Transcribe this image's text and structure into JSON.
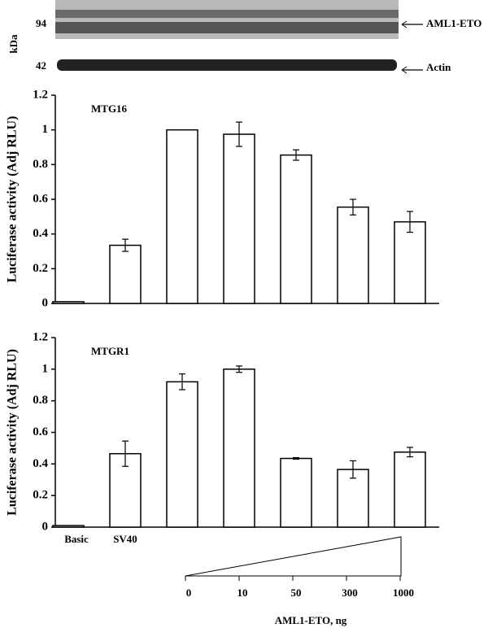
{
  "blot": {
    "markers": [
      94,
      42
    ],
    "unit": "kDa",
    "labels": [
      "AML1-ETO",
      "Actin"
    ]
  },
  "chart_data": [
    {
      "type": "bar",
      "annotation": "MTG16",
      "ylabel": "Luciferase activity (Adj RLU)",
      "values": [
        0.01,
        0.335,
        1.0,
        0.975,
        0.855,
        0.555,
        0.47
      ],
      "errors": [
        0,
        0.035,
        0,
        0.07,
        0.03,
        0.045,
        0.06
      ],
      "color": "#ffffff",
      "ylim": [
        0,
        1.2
      ],
      "yticks": [
        0,
        0.2,
        0.4,
        0.6,
        0.8,
        1,
        1.2
      ]
    },
    {
      "type": "bar",
      "annotation": "MTGR1",
      "ylabel": "Luciferase activity (Adj RLU)",
      "xlabel": "AML1-ETO, ng",
      "categories": [
        "Basic",
        "SV40",
        "0",
        "10",
        "50",
        "300",
        "1000"
      ],
      "values": [
        0.01,
        0.465,
        0.92,
        1.0,
        0.435,
        0.365,
        0.475
      ],
      "errors": [
        0,
        0.08,
        0.05,
        0.02,
        0.005,
        0.055,
        0.03
      ],
      "color": "#ffffff",
      "ylim": [
        0,
        1.2
      ],
      "yticks": [
        0,
        0.2,
        0.4,
        0.6,
        0.8,
        1,
        1.2
      ]
    }
  ]
}
